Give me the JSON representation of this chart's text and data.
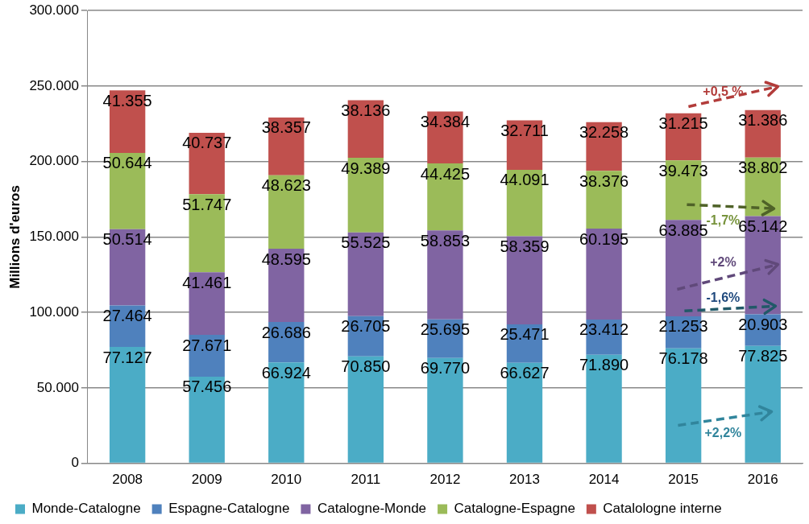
{
  "chart_data": {
    "type": "bar",
    "stacked": true,
    "ylabel": "Millions d'euros",
    "categories": [
      "2008",
      "2009",
      "2010",
      "2011",
      "2012",
      "2013",
      "2014",
      "2015",
      "2016"
    ],
    "series": [
      {
        "name": "Monde-Catalogne",
        "color": "#4bacc6",
        "values": [
          77127,
          57456,
          66924,
          70850,
          69770,
          66627,
          71890,
          76178,
          77825
        ],
        "value_labels": [
          "77.127",
          "57.456",
          "66.924",
          "70.850",
          "69.770",
          "66.627",
          "71.890",
          "76.178",
          "77.825"
        ]
      },
      {
        "name": "Espagne-Catalogne",
        "color": "#4f81bd",
        "values": [
          27464,
          27671,
          26686,
          26705,
          25695,
          25471,
          23412,
          21253,
          20903
        ],
        "value_labels": [
          "27.464",
          "27.671",
          "26.686",
          "26.705",
          "25.695",
          "25.471",
          "23.412",
          "21.253",
          "20.903"
        ]
      },
      {
        "name": "Catalogne-Monde",
        "color": "#8064a2",
        "values": [
          50514,
          41461,
          48595,
          55525,
          58853,
          58359,
          60195,
          63885,
          65142
        ],
        "value_labels": [
          "50.514",
          "41.461",
          "48.595",
          "55.525",
          "58.853",
          "58.359",
          "60.195",
          "63.885",
          "65.142"
        ]
      },
      {
        "name": "Catalogne-Espagne",
        "color": "#9bbb59",
        "values": [
          50644,
          51747,
          48623,
          49389,
          44425,
          44091,
          38376,
          39473,
          38802
        ],
        "value_labels": [
          "50.644",
          "51.747",
          "48.623",
          "49.389",
          "44.425",
          "44.091",
          "38.376",
          "39.473",
          "38.802"
        ]
      },
      {
        "name": "Catalologne interne",
        "color": "#c0504d",
        "values": [
          41355,
          40737,
          38357,
          38136,
          34384,
          32711,
          32258,
          31215,
          31386
        ],
        "value_labels": [
          "41.355",
          "40.737",
          "38.357",
          "38.136",
          "34.384",
          "32.711",
          "32.258",
          "31.215",
          "31.386"
        ]
      }
    ],
    "ylim": [
      0,
      300000
    ],
    "yticks": [
      0,
      {
        "value": 50000,
        "label": "50.000"
      },
      {
        "value": 100000,
        "label": "100.000"
      },
      {
        "value": 150000,
        "label": "150.000"
      },
      {
        "value": 200000,
        "label": "200.000"
      },
      {
        "value": 250000,
        "label": "250.000"
      },
      {
        "value": 300000,
        "label": "300.000"
      }
    ],
    "grid": "y",
    "legend": "bottom",
    "annotations": [
      "+0,5 %",
      "-1,7%",
      "+2%",
      "-1,6%",
      "+2,2%"
    ]
  }
}
